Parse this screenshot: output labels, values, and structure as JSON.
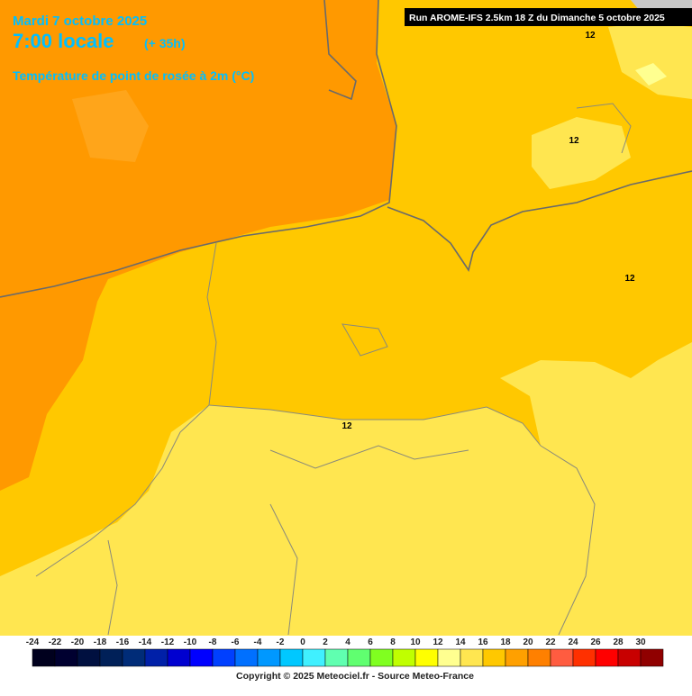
{
  "header": {
    "date": "Mardi 7 octobre 2025",
    "time": "7:00 locale",
    "lead": "(+ 35h)",
    "parameter": "Température de point de rosée à 2m (°C)",
    "run": "Run AROME-IFS 2.5km 18 Z du Dimanche 5 octobre 2025"
  },
  "contour_labels": [
    "12",
    "12",
    "12",
    "12"
  ],
  "legend": {
    "labels": [
      -24,
      -22,
      -20,
      -18,
      -16,
      -14,
      -12,
      -10,
      -8,
      -6,
      -4,
      -2,
      0,
      2,
      4,
      6,
      8,
      10,
      12,
      14,
      16,
      18,
      20,
      22,
      24,
      26,
      28,
      30
    ],
    "colors": [
      "#00001e",
      "#000030",
      "#001040",
      "#002058",
      "#002c78",
      "#0020a8",
      "#0000d0",
      "#0000ff",
      "#0040ff",
      "#0070ff",
      "#0098ff",
      "#00c8ff",
      "#40f0ff",
      "#60ffb0",
      "#60ff70",
      "#80ff20",
      "#c0ff00",
      "#ffff00",
      "#ffff90",
      "#ffe650",
      "#ffc800",
      "#ffa000",
      "#ff8000",
      "#ff5c40",
      "#ff3000",
      "#ff0000",
      "#c80000",
      "#900000"
    ]
  },
  "footer": {
    "copyright": "Copyright © 2025 Meteociel.fr - Source Meteo-France"
  }
}
